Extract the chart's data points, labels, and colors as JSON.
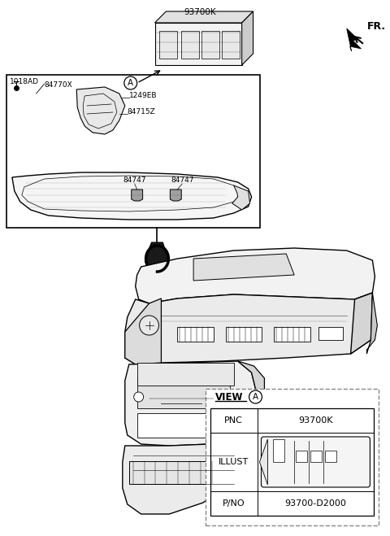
{
  "bg_color": "#ffffff",
  "fr_label": "FR.",
  "label_93700K": "93700K",
  "label_1018AD": "1018AD",
  "label_84770X": "84770X",
  "label_1249EB": "1249EB",
  "label_84715Z": "84715Z",
  "label_84747": "84747",
  "view_title": "VIEW",
  "view_circle": "A",
  "pnc_label": "PNC",
  "pnc_value": "93700K",
  "illust_label": "ILLUST",
  "pno_label": "P/NO",
  "pno_value": "93700-D2000"
}
